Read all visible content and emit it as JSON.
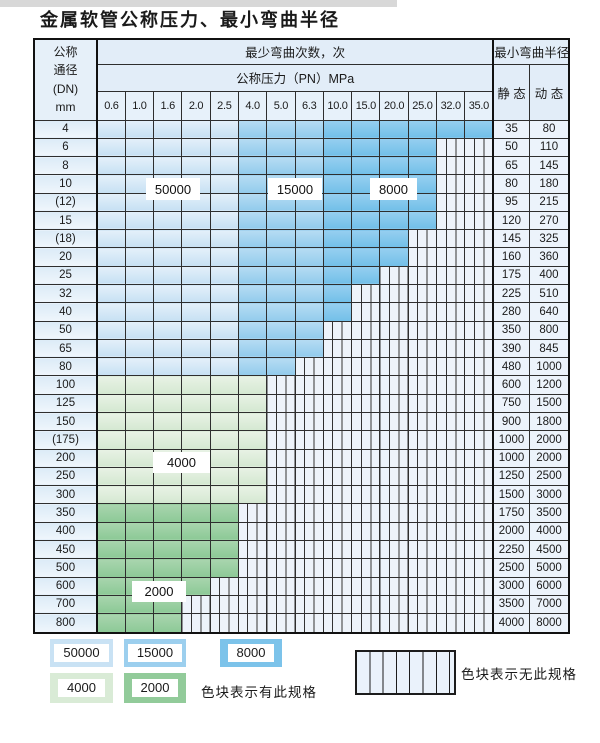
{
  "page": {
    "title": "金属软管公称压力、最小弯曲半径"
  },
  "table": {
    "dn_header_lines": [
      "公称",
      "通径",
      "(DN)",
      "mm"
    ],
    "cycles_header": "最少弯曲次数，次",
    "pressure_header": "公称压力（PN）MPa",
    "radius_header": "最小弯曲半径",
    "static_header": "静 态",
    "dynamic_header": "动 态",
    "pressures": [
      "0.6",
      "1.0",
      "1.6",
      "2.0",
      "2.5",
      "4.0",
      "5.0",
      "6.3",
      "10.0",
      "15.0",
      "20.0",
      "25.0",
      "32.0",
      "35.0"
    ],
    "region_labels": [
      "50000",
      "15000",
      "8000",
      "4000",
      "2000"
    ],
    "band_meaning": {
      "blue": "bend-cycle shading by pressure column: cols 0.6-2.5 = 50000, cols 4.0-6.3 = 15000, cols 10.0-35.0 = 8000",
      "g1": "4000 cycles",
      "g2": "2000 cycles",
      "hatch": "no such specification"
    },
    "rows": [
      {
        "dn": "4",
        "band": "blue",
        "colored": 14,
        "static": "35",
        "dynamic": "80"
      },
      {
        "dn": "6",
        "band": "blue",
        "colored": 12,
        "static": "50",
        "dynamic": "110"
      },
      {
        "dn": "8",
        "band": "blue",
        "colored": 12,
        "static": "65",
        "dynamic": "145"
      },
      {
        "dn": "10",
        "band": "blue",
        "colored": 12,
        "static": "80",
        "dynamic": "180"
      },
      {
        "dn": "(12)",
        "band": "blue",
        "colored": 12,
        "static": "95",
        "dynamic": "215"
      },
      {
        "dn": "15",
        "band": "blue",
        "colored": 12,
        "static": "120",
        "dynamic": "270"
      },
      {
        "dn": "(18)",
        "band": "blue",
        "colored": 11,
        "static": "145",
        "dynamic": "325"
      },
      {
        "dn": "20",
        "band": "blue",
        "colored": 11,
        "static": "160",
        "dynamic": "360"
      },
      {
        "dn": "25",
        "band": "blue",
        "colored": 10,
        "static": "175",
        "dynamic": "400"
      },
      {
        "dn": "32",
        "band": "blue",
        "colored": 9,
        "static": "225",
        "dynamic": "510"
      },
      {
        "dn": "40",
        "band": "blue",
        "colored": 9,
        "static": "280",
        "dynamic": "640"
      },
      {
        "dn": "50",
        "band": "blue",
        "colored": 8,
        "static": "350",
        "dynamic": "800"
      },
      {
        "dn": "65",
        "band": "blue",
        "colored": 8,
        "static": "390",
        "dynamic": "845"
      },
      {
        "dn": "80",
        "band": "blue",
        "colored": 7,
        "static": "480",
        "dynamic": "1000"
      },
      {
        "dn": "100",
        "band": "g1",
        "colored": 6,
        "static": "600",
        "dynamic": "1200"
      },
      {
        "dn": "125",
        "band": "g1",
        "colored": 6,
        "static": "750",
        "dynamic": "1500"
      },
      {
        "dn": "150",
        "band": "g1",
        "colored": 6,
        "static": "900",
        "dynamic": "1800"
      },
      {
        "dn": "(175)",
        "band": "g1",
        "colored": 6,
        "static": "1000",
        "dynamic": "2000"
      },
      {
        "dn": "200",
        "band": "g1",
        "colored": 6,
        "static": "1000",
        "dynamic": "2000"
      },
      {
        "dn": "250",
        "band": "g1",
        "colored": 6,
        "static": "1250",
        "dynamic": "2500"
      },
      {
        "dn": "300",
        "band": "g1",
        "colored": 6,
        "static": "1500",
        "dynamic": "3000"
      },
      {
        "dn": "350",
        "band": "g2",
        "colored": 5,
        "static": "1750",
        "dynamic": "3500"
      },
      {
        "dn": "400",
        "band": "g2",
        "colored": 5,
        "static": "2000",
        "dynamic": "4000"
      },
      {
        "dn": "450",
        "band": "g2",
        "colored": 5,
        "static": "2250",
        "dynamic": "4500"
      },
      {
        "dn": "500",
        "band": "g2",
        "colored": 5,
        "static": "2500",
        "dynamic": "5000"
      },
      {
        "dn": "600",
        "band": "g2",
        "colored": 4,
        "static": "3000",
        "dynamic": "6000"
      },
      {
        "dn": "700",
        "band": "g2",
        "colored": 3,
        "static": "3500",
        "dynamic": "7000"
      },
      {
        "dn": "800",
        "band": "g2",
        "colored": 3,
        "static": "4000",
        "dynamic": "8000"
      }
    ]
  },
  "legend": {
    "swatches": [
      {
        "label": "50000",
        "band": "b1",
        "color": "#c9e2f4"
      },
      {
        "label": "15000",
        "band": "b2",
        "color": "#9ccfee"
      },
      {
        "label": "8000",
        "band": "b3",
        "color": "#7cc3ea"
      },
      {
        "label": "4000",
        "band": "g1",
        "color": "#d9ebd6"
      },
      {
        "label": "2000",
        "band": "g2",
        "color": "#92cb9a"
      }
    ],
    "has_spec_note": "色块表示有此规格",
    "no_spec_note": "色块表示无此规格"
  },
  "colors": {
    "blue_50000": "#c6e0f3",
    "blue_15000": "#92cbec",
    "blue_8000": "#72bfe8",
    "green_4000": "#d4e8d1",
    "green_2000": "#8cc996",
    "hatch_bg": "#edf3fa",
    "grid_border": "#2e2e2e",
    "outer_border": "#111111"
  }
}
